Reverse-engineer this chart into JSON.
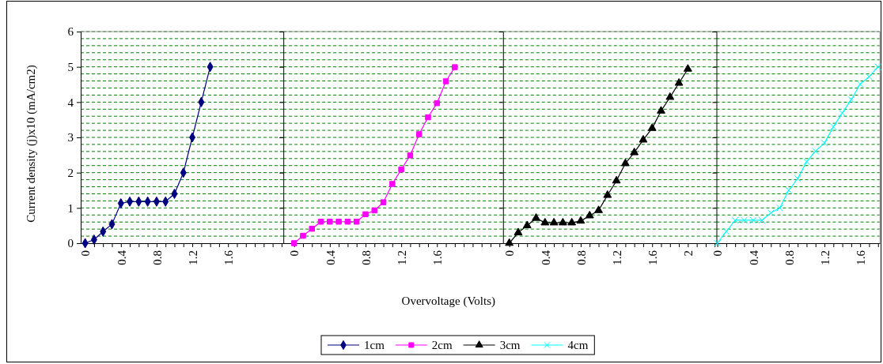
{
  "chart_data": [
    {
      "type": "line",
      "ylabel": "Current density (j)x10 (mA/cm2)",
      "x": [
        0,
        0.1,
        0.2,
        0.3,
        0.4,
        0.5,
        0.6,
        0.7,
        0.8,
        0.9,
        1.0,
        1.1,
        1.2,
        1.3,
        1.4
      ],
      "series": [
        {
          "name": "1cm",
          "color": "#000080",
          "values": [
            0,
            0.1,
            0.33,
            0.54,
            1.13,
            1.18,
            1.18,
            1.18,
            1.18,
            1.18,
            1.4,
            2.0,
            3.0,
            4.0,
            5.0
          ]
        }
      ],
      "marker": "diamond",
      "xlim": [
        -0.05,
        2.22
      ],
      "xticks": [
        0,
        {
          "value": 0.1,
          "label": null
        },
        {
          "value": 0.2,
          "label": null
        },
        {
          "value": 0.3,
          "label": null
        },
        0.4,
        {
          "value": 0.5,
          "label": null
        },
        {
          "value": 0.6,
          "label": null
        },
        {
          "value": 0.7,
          "label": null
        },
        0.8,
        {
          "value": 0.9,
          "label": null
        },
        {
          "value": 1.0,
          "label": null
        },
        {
          "value": 1.1,
          "label": null
        },
        1.2,
        {
          "value": 1.3,
          "label": null
        },
        {
          "value": 1.4,
          "label": null
        },
        {
          "value": 1.5,
          "label": null
        },
        1.6,
        {
          "value": 1.7,
          "label": null
        },
        {
          "value": 1.8,
          "label": null
        },
        {
          "value": 1.9,
          "label": null
        },
        {
          "value": 2.0,
          "label": null
        },
        {
          "value": 2.1,
          "label": null
        },
        {
          "value": 2.2,
          "label": null
        }
      ],
      "ylim": [
        0,
        6
      ],
      "yticks": [
        0,
        1,
        2,
        3,
        4,
        5,
        6
      ],
      "grid": "y",
      "legend": "bottom"
    },
    {
      "type": "line",
      "xlabel": "Overvoltage (Volts)",
      "x": [
        0,
        0.1,
        0.2,
        0.3,
        0.4,
        0.5,
        0.6,
        0.7,
        0.8,
        0.9,
        1.0,
        1.1,
        1.2,
        1.3,
        1.4,
        1.5,
        1.6,
        1.7,
        1.8
      ],
      "series": [
        {
          "name": "2cm",
          "color": "#ff00ff",
          "values": [
            0,
            0.21,
            0.41,
            0.61,
            0.61,
            0.61,
            0.61,
            0.61,
            0.82,
            0.93,
            1.16,
            1.68,
            2.09,
            2.49,
            3.09,
            3.57,
            3.97,
            4.59,
            4.99
          ]
        }
      ],
      "marker": "square",
      "xlim": [
        -0.12,
        2.34
      ],
      "xticks": [
        0,
        {
          "value": 0.1,
          "label": null
        },
        {
          "value": 0.2,
          "label": null
        },
        {
          "value": 0.3,
          "label": null
        },
        0.4,
        {
          "value": 0.5,
          "label": null
        },
        {
          "value": 0.6,
          "label": null
        },
        {
          "value": 0.7,
          "label": null
        },
        0.8,
        {
          "value": 0.9,
          "label": null
        },
        {
          "value": 1.0,
          "label": null
        },
        {
          "value": 1.1,
          "label": null
        },
        1.2,
        {
          "value": 1.3,
          "label": null
        },
        {
          "value": 1.4,
          "label": null
        },
        {
          "value": 1.5,
          "label": null
        },
        1.6,
        {
          "value": 1.7,
          "label": null
        },
        {
          "value": 1.8,
          "label": null
        },
        {
          "value": 1.9,
          "label": null
        },
        {
          "value": 2.0,
          "label": null
        },
        {
          "value": 2.1,
          "label": null
        },
        {
          "value": 2.2,
          "label": null
        },
        {
          "value": 2.3,
          "label": null
        }
      ],
      "ylim": [
        0,
        6
      ],
      "yticks": [
        0,
        1,
        2,
        3,
        4,
        5,
        6
      ],
      "grid": "y",
      "legend": "bottom",
      "tick_labels": "x"
    },
    {
      "type": "line",
      "x": [
        0,
        0.1,
        0.2,
        0.3,
        0.4,
        0.5,
        0.6,
        0.7,
        0.8,
        0.9,
        1.0,
        1.1,
        1.2,
        1.3,
        1.4,
        1.5,
        1.6,
        1.7,
        1.8,
        1.9,
        2.0
      ],
      "series": [
        {
          "name": "3cm",
          "color": "#000000",
          "values": [
            0,
            0.3,
            0.5,
            0.71,
            0.58,
            0.58,
            0.58,
            0.58,
            0.63,
            0.78,
            0.93,
            1.36,
            1.77,
            2.26,
            2.57,
            2.93,
            3.26,
            3.75,
            4.14,
            4.54,
            4.94
          ]
        }
      ],
      "marker": "triangle",
      "xlim": [
        -0.07,
        2.32
      ],
      "xticks": [
        0,
        {
          "value": 0.1,
          "label": null
        },
        {
          "value": 0.2,
          "label": null
        },
        {
          "value": 0.3,
          "label": null
        },
        0.4,
        {
          "value": 0.5,
          "label": null
        },
        {
          "value": 0.6,
          "label": null
        },
        {
          "value": 0.7,
          "label": null
        },
        0.8,
        {
          "value": 0.9,
          "label": null
        },
        {
          "value": 1.0,
          "label": null
        },
        {
          "value": 1.1,
          "label": null
        },
        1.2,
        {
          "value": 1.3,
          "label": null
        },
        {
          "value": 1.4,
          "label": null
        },
        {
          "value": 1.5,
          "label": null
        },
        1.6,
        {
          "value": 1.7,
          "label": null
        },
        {
          "value": 1.8,
          "label": null
        },
        {
          "value": 1.9,
          "label": null
        },
        2,
        {
          "value": 2.1,
          "label": null
        },
        {
          "value": 2.2,
          "label": null
        },
        {
          "value": 2.3,
          "label": null
        }
      ],
      "ylim": [
        0,
        6
      ],
      "yticks": [
        0,
        1,
        2,
        3,
        4,
        5,
        6
      ],
      "grid": "y",
      "legend": "bottom",
      "tick_labels": "x"
    },
    {
      "type": "line",
      "x": [
        0,
        0.1,
        0.2,
        0.3,
        0.4,
        0.5,
        0.6,
        0.7,
        0.8,
        0.9,
        1.0,
        1.1,
        1.2,
        1.3,
        1.4,
        1.5,
        1.6,
        1.7,
        1.8
      ],
      "series": [
        {
          "name": "4cm",
          "color": "#00ffff",
          "values": [
            0,
            0.33,
            0.65,
            0.65,
            0.65,
            0.65,
            0.86,
            1.0,
            1.5,
            1.83,
            2.31,
            2.61,
            2.84,
            3.3,
            3.69,
            4.07,
            4.51,
            4.72,
            5.0
          ]
        }
      ],
      "marker": "cross",
      "xlim": [
        -0.01,
        1.82
      ],
      "xticks": [
        0,
        {
          "value": 0.1,
          "label": null
        },
        {
          "value": 0.2,
          "label": null
        },
        {
          "value": 0.3,
          "label": null
        },
        0.4,
        {
          "value": 0.5,
          "label": null
        },
        {
          "value": 0.6,
          "label": null
        },
        {
          "value": 0.7,
          "label": null
        },
        0.8,
        {
          "value": 0.9,
          "label": null
        },
        {
          "value": 1.0,
          "label": null
        },
        {
          "value": 1.1,
          "label": null
        },
        1.2,
        {
          "value": 1.3,
          "label": null
        },
        {
          "value": 1.4,
          "label": null
        },
        {
          "value": 1.5,
          "label": null
        },
        1.6,
        {
          "value": 1.7,
          "label": null
        },
        {
          "value": 1.8,
          "label": null
        }
      ],
      "ylim": [
        0,
        6
      ],
      "yticks": [
        0,
        1,
        2,
        3,
        4,
        5,
        6
      ],
      "grid": "y",
      "legend": "bottom",
      "tick_labels": "x"
    }
  ]
}
